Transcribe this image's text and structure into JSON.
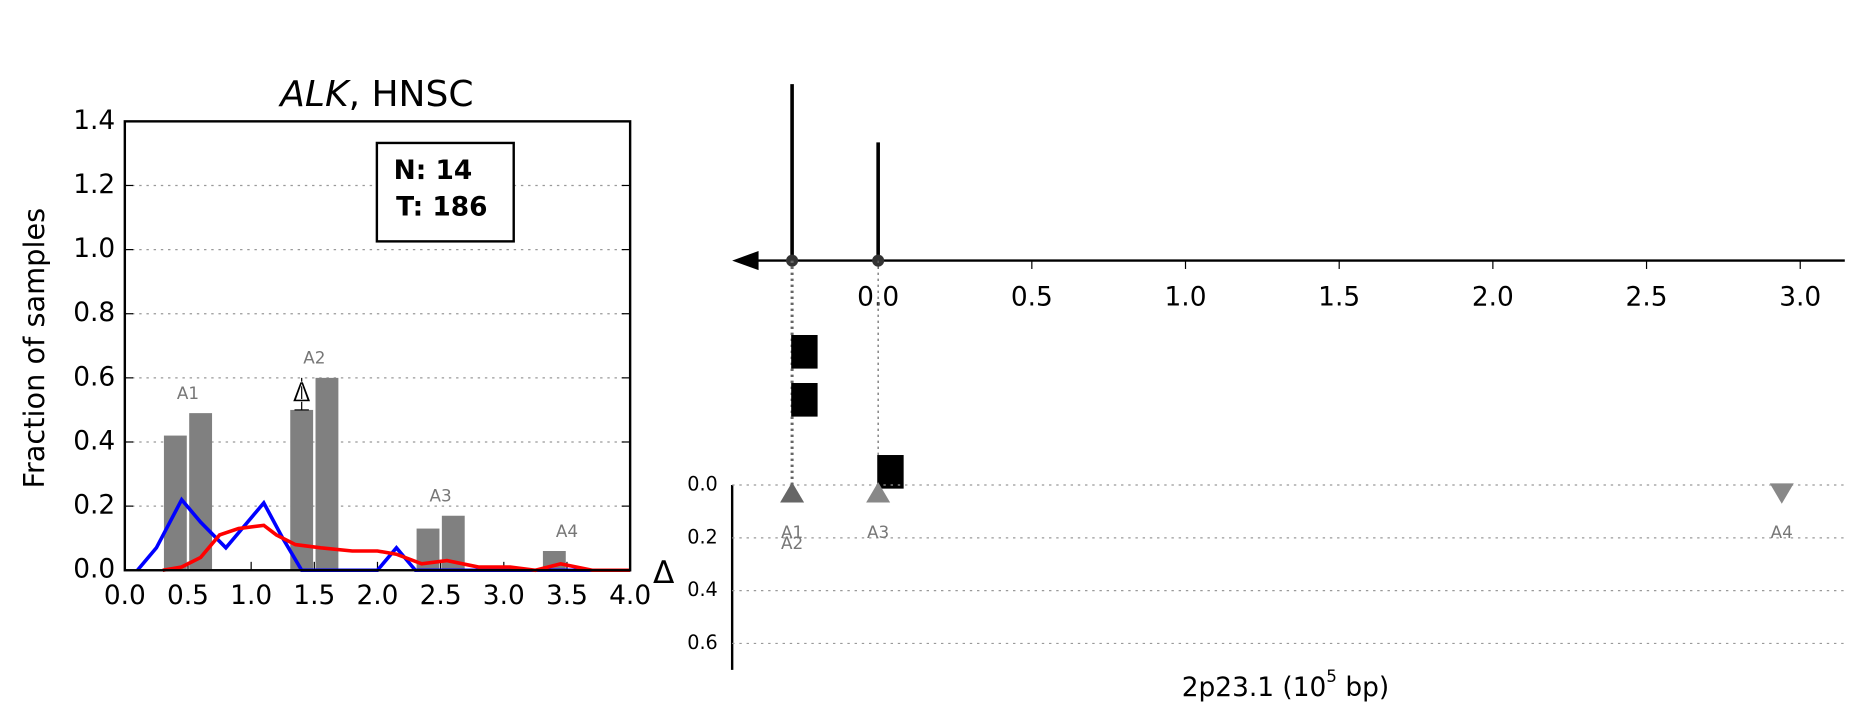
{
  "chart_data": [
    {
      "type": "histogram-lines",
      "title": [
        "ALK",
        ", HNSC"
      ],
      "ylabel": "Fraction of samples",
      "annotation": [
        "N: 14",
        "T: 186"
      ],
      "side_label": "Δ",
      "xlim": [
        0,
        4.0
      ],
      "ylim": [
        0,
        1.4
      ],
      "xticks": [
        {
          "value": 0,
          "label": "0.0"
        },
        0.5,
        {
          "value": 1,
          "label": "1.0"
        },
        1.5,
        {
          "value": 2,
          "label": "2.0"
        },
        2.5,
        {
          "value": 3,
          "label": "3.0"
        },
        3.5,
        {
          "value": 4,
          "label": "4.0"
        }
      ],
      "yticks": [
        {
          "value": 0,
          "label": "0.0"
        },
        0.2,
        0.4,
        0.6,
        0.8,
        {
          "value": 1,
          "label": "1.0"
        },
        1.2,
        1.4
      ],
      "grid": true,
      "bars": {
        "color": "#808080",
        "width": 0.2,
        "x": [
          0.4,
          0.6,
          1.4,
          1.6,
          2.4,
          2.6,
          3.4
        ],
        "values": [
          0.42,
          0.49,
          0.5,
          0.6,
          0.13,
          0.17,
          0.06
        ]
      },
      "group_labels": [
        {
          "text": "A1",
          "x": 0.5
        },
        {
          "text": "A2",
          "x": 1.5
        },
        {
          "text": "A3",
          "x": 2.5
        },
        {
          "text": "A4",
          "x": 3.5
        }
      ],
      "delta": {
        "label": "Δ",
        "x": 1.4,
        "y": 0.55,
        "error": 0.05
      },
      "series": [
        {
          "color": "#0000ff",
          "x": [
            0.1,
            0.25,
            0.45,
            0.6,
            0.8,
            0.95,
            1.1,
            1.25,
            1.4,
            2.0,
            2.15,
            2.3,
            4.0
          ],
          "values": [
            0,
            0.07,
            0.22,
            0.15,
            0.07,
            0.14,
            0.21,
            0.1,
            0,
            0,
            0.07,
            0,
            0
          ]
        },
        {
          "color": "#ff0000",
          "x": [
            0.3,
            0.45,
            0.6,
            0.75,
            0.9,
            1.1,
            1.2,
            1.35,
            1.55,
            1.8,
            2.0,
            2.15,
            2.35,
            2.55,
            2.8,
            3.05,
            3.25,
            3.45,
            3.7,
            4.0
          ],
          "values": [
            0,
            0.01,
            0.04,
            0.11,
            0.13,
            0.14,
            0.11,
            0.08,
            0.07,
            0.06,
            0.06,
            0.05,
            0.02,
            0.03,
            0.01,
            0.01,
            0,
            0.02,
            0,
            0
          ]
        }
      ]
    },
    {
      "type": "stem",
      "xlabel": [
        "2p23.1 (10",
        "5",
        " bp)"
      ],
      "xlim": [
        -0.475,
        3.145
      ],
      "xticks": [
        {
          "value": 0,
          "label": "0.0"
        },
        0.5,
        {
          "value": 1,
          "label": "1.0"
        },
        1.5,
        {
          "value": 2,
          "label": "2.0"
        },
        2.5,
        {
          "value": 3,
          "label": "3.0"
        }
      ],
      "ylim": [
        0,
        0.7
      ],
      "yticks": [
        {
          "value": 0,
          "label": "0.0"
        },
        0.2,
        0.4,
        0.6
      ],
      "stems": {
        "x": [
          -0.28,
          0
        ],
        "heights": [
          1.0,
          0.67
        ]
      },
      "markers": {
        "x": [
          -0.24,
          -0.24,
          0.04
        ]
      },
      "sites": [
        {
          "x": -0.28,
          "y": 0.03,
          "direction": "up",
          "color": "#666666",
          "labels": [
            "A1",
            "A2"
          ]
        },
        {
          "x": 0,
          "y": 0.03,
          "direction": "up",
          "color": "#888888",
          "labels": [
            "A3"
          ]
        },
        {
          "x": 2.94,
          "y": 0.03,
          "direction": "down",
          "color": "#888888",
          "labels": [
            "A4"
          ]
        }
      ]
    }
  ]
}
